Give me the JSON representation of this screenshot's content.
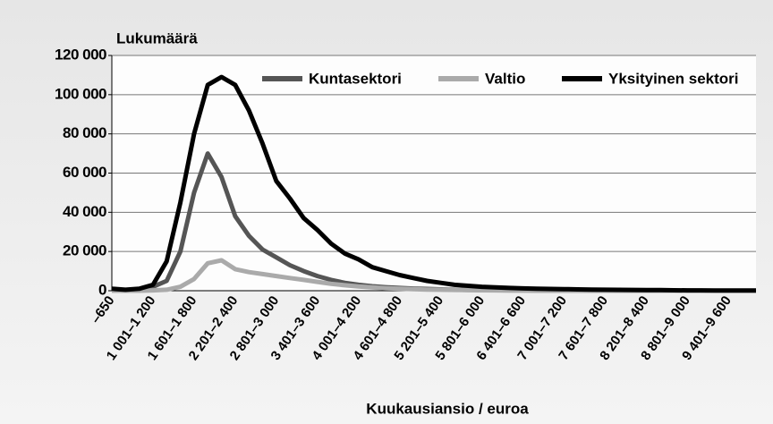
{
  "chart_data": {
    "type": "line",
    "y_label": "Lukumäärä",
    "x_label": "Kuukausiansio / euroa",
    "categories": [
      "–650",
      null,
      null,
      "1 001–1 200",
      null,
      null,
      "1 601–1 800",
      null,
      null,
      "2 201–2 400",
      null,
      null,
      "2 801–3 000",
      null,
      null,
      "3 401–3 600",
      null,
      null,
      "4 001–4 200",
      null,
      null,
      "4 601–4 800",
      null,
      null,
      "5 201–5 400",
      null,
      null,
      "5 801–6 000",
      null,
      null,
      "6 401–6 600",
      null,
      null,
      "7 001–7 200",
      null,
      null,
      "7 601–7 800",
      null,
      null,
      "8 201–8 400",
      null,
      null,
      "8 801–9 000",
      null,
      null,
      "9 401–9 600",
      null,
      null
    ],
    "series": [
      {
        "name": "Kuntasektori",
        "color": "#555555",
        "values": [
          500,
          300,
          500,
          2000,
          5000,
          20000,
          50000,
          70000,
          58000,
          38000,
          28000,
          21000,
          17000,
          13000,
          10000,
          7500,
          5500,
          4000,
          3000,
          2300,
          1800,
          1400,
          1100,
          900,
          700,
          500,
          400,
          300,
          250,
          200,
          180,
          150,
          120,
          100,
          90,
          80,
          70,
          60,
          50,
          40,
          40,
          30,
          30,
          20,
          20,
          10,
          10,
          10
        ]
      },
      {
        "name": "Valtio",
        "color": "#aaaaaa",
        "values": [
          0,
          0,
          0,
          200,
          500,
          2000,
          6000,
          14000,
          15500,
          11000,
          9500,
          8500,
          7500,
          6500,
          5500,
          4500,
          3500,
          2800,
          2200,
          1700,
          1300,
          1000,
          800,
          600,
          500,
          400,
          300,
          250,
          200,
          180,
          150,
          120,
          100,
          90,
          80,
          70,
          60,
          50,
          40,
          30,
          30,
          20,
          20,
          10,
          10,
          10,
          0,
          0
        ]
      },
      {
        "name": "Yksityinen sektori",
        "color": "#000000",
        "values": [
          1000,
          500,
          1000,
          3000,
          15000,
          45000,
          80000,
          105000,
          109000,
          105000,
          92000,
          75000,
          56000,
          47000,
          37000,
          31000,
          24000,
          19000,
          16000,
          12000,
          10000,
          8000,
          6500,
          5000,
          4000,
          3000,
          2500,
          2000,
          1700,
          1400,
          1200,
          1000,
          900,
          800,
          700,
          600,
          500,
          450,
          400,
          350,
          300,
          250,
          200,
          200,
          150,
          150,
          100,
          100
        ]
      }
    ],
    "ylim": [
      0,
      120000
    ],
    "yticks": [
      0,
      {
        "value": 20000,
        "label": "20 000"
      },
      {
        "value": 40000,
        "label": "40 000"
      },
      {
        "value": 60000,
        "label": "60 000"
      },
      {
        "value": 80000,
        "label": "80 000"
      },
      {
        "value": 100000,
        "label": "100 000"
      },
      {
        "value": 120000,
        "label": "120 000"
      }
    ],
    "grid": true,
    "legend": "top"
  }
}
